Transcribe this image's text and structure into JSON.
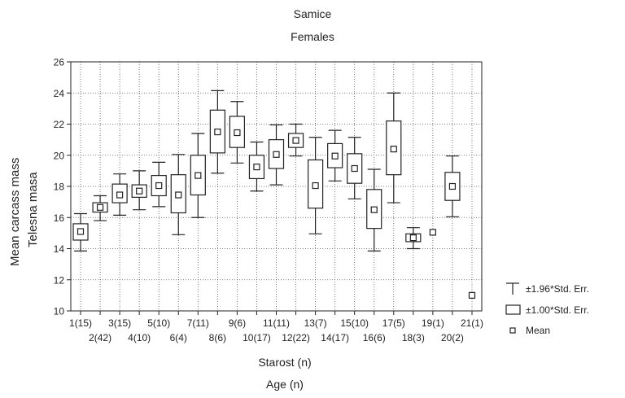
{
  "chart_data": {
    "type": "box",
    "title": "Samice",
    "subtitle": "Females",
    "xlabel": "Starost (n)",
    "xlabel2": "Age (n)",
    "ylabel": "Mean carcass mass",
    "ylabel2": "Telesna masa",
    "ylim": [
      10,
      26
    ],
    "yticks": [
      10,
      12,
      14,
      16,
      18,
      20,
      22,
      24,
      26
    ],
    "grid": true,
    "legend_position": "bottom-right",
    "legend": [
      "±1.96*Std. Err.",
      "±1.00*Std. Err.",
      "Mean"
    ],
    "categories": [
      "1(15)",
      "2(42)",
      "3(15)",
      "4(10)",
      "5(10)",
      "6(4)",
      "7(11)",
      "8(6)",
      "9(6)",
      "10(17)",
      "11(11)",
      "12(22)",
      "13(7)",
      "14(17)",
      "15(10)",
      "16(6)",
      "17(5)",
      "18(3)",
      "19(1)",
      "20(2)",
      "21(1)"
    ],
    "mean": [
      15.1,
      16.65,
      17.45,
      17.7,
      18.05,
      17.45,
      18.7,
      21.5,
      21.45,
      19.25,
      20.05,
      20.95,
      18.05,
      19.95,
      19.15,
      16.5,
      20.4,
      14.7,
      15.05,
      18.0,
      11.0
    ],
    "se_low": [
      14.55,
      16.35,
      16.95,
      17.3,
      17.4,
      16.3,
      17.45,
      20.15,
      20.5,
      18.5,
      19.15,
      20.5,
      16.6,
      19.2,
      18.2,
      15.3,
      18.75,
      14.45,
      15.05,
      17.1,
      11.0
    ],
    "se_high": [
      15.6,
      16.95,
      18.15,
      18.1,
      18.7,
      18.75,
      20.0,
      22.9,
      22.5,
      20.0,
      21.0,
      21.4,
      19.7,
      20.75,
      20.1,
      17.8,
      22.2,
      14.95,
      15.05,
      18.9,
      11.0
    ],
    "ci_low": [
      13.85,
      15.8,
      16.15,
      16.5,
      16.7,
      14.9,
      16.0,
      18.85,
      19.5,
      17.7,
      18.1,
      19.95,
      14.95,
      18.35,
      17.2,
      13.85,
      16.95,
      14.0,
      15.05,
      16.05,
      11.0
    ],
    "ci_high": [
      16.25,
      17.4,
      18.8,
      19.0,
      19.55,
      20.05,
      21.4,
      24.15,
      23.45,
      20.85,
      21.95,
      22.0,
      21.15,
      21.6,
      21.15,
      19.1,
      24.0,
      15.35,
      15.05,
      19.95,
      11.0
    ]
  }
}
